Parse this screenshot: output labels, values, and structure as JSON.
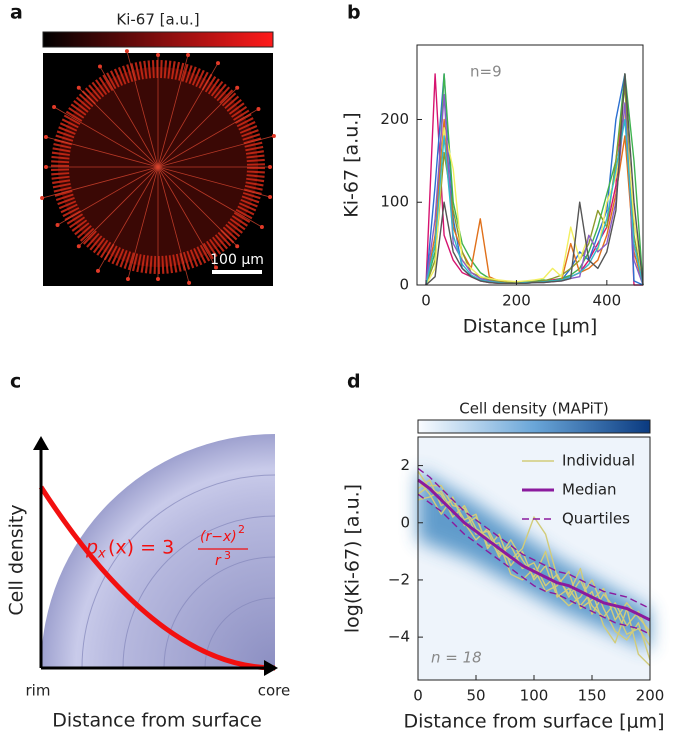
{
  "panel_labels": [
    "a",
    "b",
    "c",
    "d"
  ],
  "panel_a": {
    "colorbar_label": "Ki-67 [a.u.]",
    "scale_bar": "100 μm"
  },
  "panel_c": {
    "y_label": "Cell density",
    "x_label": "Distance from surface",
    "rim": "rim",
    "core": "core",
    "formula": {
      "lhs": "p",
      "lhs_sub": "x",
      "mid": "(x) = 3",
      "num": "(r−x)",
      "num_sup": "2",
      "den": "r",
      "den_sup": "3"
    }
  },
  "chart_data": [
    {
      "type": "line",
      "x_label": "Distance [μm]",
      "y_label": "Ki-67 [a.u.]",
      "annotation": "n=9",
      "x": [
        0,
        20,
        40,
        60,
        80,
        100,
        120,
        140,
        160,
        180,
        200,
        220,
        240,
        260,
        280,
        300,
        320,
        340,
        360,
        380,
        400,
        420,
        440,
        460,
        480
      ],
      "xlim": [
        -20,
        480
      ],
      "xticks": [
        0,
        200,
        400
      ],
      "ylim": [
        0,
        290
      ],
      "yticks": [
        0,
        100,
        200
      ],
      "series": [
        {
          "color": "#d6136f",
          "values": [
            0,
            255,
            60,
            30,
            15,
            10,
            5,
            3,
            2,
            2,
            3,
            4,
            3,
            5,
            6,
            8,
            10,
            15,
            30,
            50,
            70,
            120,
            255,
            0,
            0
          ]
        },
        {
          "color": "#2b6fd1",
          "values": [
            0,
            120,
            255,
            80,
            20,
            10,
            6,
            4,
            3,
            2,
            2,
            2,
            3,
            4,
            5,
            6,
            20,
            40,
            30,
            60,
            90,
            200,
            255,
            5,
            0
          ]
        },
        {
          "color": "#3fb34f",
          "values": [
            0,
            40,
            255,
            100,
            50,
            30,
            15,
            8,
            4,
            3,
            3,
            4,
            5,
            6,
            5,
            8,
            12,
            20,
            40,
            70,
            110,
            150,
            255,
            150,
            0
          ]
        },
        {
          "color": "#e0701a",
          "values": [
            0,
            60,
            200,
            70,
            40,
            20,
            80,
            10,
            5,
            3,
            2,
            3,
            4,
            5,
            4,
            6,
            50,
            15,
            20,
            30,
            60,
            110,
            180,
            40,
            0
          ]
        },
        {
          "color": "#8c9a2a",
          "values": [
            0,
            30,
            160,
            90,
            40,
            15,
            10,
            6,
            4,
            3,
            3,
            3,
            4,
            5,
            8,
            12,
            20,
            30,
            50,
            90,
            70,
            150,
            240,
            60,
            0
          ]
        },
        {
          "color": "#f2ef60",
          "values": [
            0,
            20,
            190,
            140,
            30,
            20,
            10,
            8,
            6,
            5,
            4,
            5,
            6,
            8,
            20,
            10,
            70,
            30,
            60,
            40,
            100,
            130,
            210,
            80,
            0
          ]
        },
        {
          "color": "#8a5cc7",
          "values": [
            0,
            80,
            230,
            50,
            30,
            15,
            8,
            5,
            3,
            2,
            2,
            2,
            3,
            3,
            4,
            5,
            8,
            10,
            60,
            40,
            50,
            100,
            220,
            30,
            0
          ]
        },
        {
          "color": "#33b7c9",
          "values": [
            0,
            50,
            180,
            60,
            25,
            12,
            6,
            4,
            3,
            2,
            2,
            3,
            3,
            4,
            5,
            6,
            10,
            15,
            25,
            45,
            80,
            140,
            200,
            50,
            0
          ]
        },
        {
          "color": "#555555",
          "values": [
            0,
            10,
            100,
            40,
            20,
            10,
            5,
            3,
            2,
            2,
            2,
            2,
            3,
            3,
            4,
            5,
            8,
            100,
            30,
            20,
            40,
            90,
            255,
            100,
            0
          ]
        }
      ]
    },
    {
      "type": "line",
      "x_label": "Distance from surface [μm]",
      "y_label": "log(Ki-67) [a.u.]",
      "annotation": "n = 18",
      "colorbar_label": "Cell density (MAPiT)",
      "legend": "upper right",
      "x": [
        0,
        10,
        20,
        30,
        40,
        50,
        60,
        70,
        80,
        90,
        100,
        110,
        120,
        130,
        140,
        150,
        160,
        170,
        180,
        190,
        200
      ],
      "xlim": [
        0,
        200
      ],
      "xticks": [
        0,
        50,
        100,
        150,
        200
      ],
      "ylim": [
        -5.5,
        3.0
      ],
      "yticks": [
        {
          "value": -4,
          "label": "−4"
        },
        {
          "value": -2,
          "label": "−2"
        },
        0,
        2
      ],
      "series": [
        {
          "name": "Individual",
          "color": "#d2cc7a",
          "values": [
            1.8,
            1.2,
            1.0,
            0.2,
            0.6,
            -0.2,
            -0.5,
            -1.1,
            -0.8,
            -1.6,
            -1.4,
            -2.2,
            -1.8,
            -2.6,
            -2.0,
            -2.9,
            -3.3,
            -2.8,
            -3.6,
            -3.1,
            -4.0
          ]
        },
        {
          "color": "#d2cc7a",
          "values": [
            1.2,
            1.5,
            0.6,
            0.8,
            0.1,
            0.3,
            -0.9,
            -0.4,
            -1.5,
            -1.0,
            -2.0,
            -1.5,
            -2.6,
            -2.3,
            -2.9,
            -2.4,
            -3.6,
            -4.2,
            -3.0,
            -4.6,
            -5.0
          ]
        },
        {
          "color": "#d2cc7a",
          "values": [
            0.8,
            0.9,
            1.1,
            0.4,
            0.0,
            -0.6,
            -0.2,
            -1.0,
            -1.3,
            -0.9,
            0.2,
            -0.4,
            -1.9,
            -2.5,
            -1.6,
            -3.2,
            -2.5,
            -3.0,
            -3.9,
            -3.7,
            -4.3
          ]
        },
        {
          "color": "#d2cc7a",
          "values": [
            1.5,
            1.0,
            0.3,
            0.9,
            -0.1,
            0.2,
            -0.8,
            -0.7,
            -1.8,
            -2.0,
            -1.6,
            -2.4,
            -2.2,
            -1.7,
            -3.0,
            -2.7,
            -2.3,
            -3.4,
            -2.8,
            -3.3,
            -3.8
          ]
        },
        {
          "color": "#d2cc7a",
          "values": [
            1.0,
            1.3,
            1.3,
            0.6,
            0.5,
            -0.4,
            -0.3,
            -1.2,
            -0.6,
            -1.3,
            -1.9,
            -1.0,
            -2.5,
            -2.9,
            -2.6,
            -2.0,
            -3.0,
            -3.8,
            -4.1,
            -3.5,
            -4.8
          ]
        },
        {
          "name": "Median",
          "color": "#8b1a9e",
          "width": 3,
          "values": [
            1.5,
            1.2,
            0.8,
            0.4,
            0.0,
            -0.3,
            -0.6,
            -0.9,
            -1.2,
            -1.5,
            -1.7,
            -1.9,
            -2.1,
            -2.2,
            -2.4,
            -2.6,
            -2.8,
            -2.9,
            -3.0,
            -3.2,
            -3.4
          ]
        },
        {
          "name": "Quartiles",
          "color": "#8b1a9e",
          "dash": true,
          "values": [
            1.0,
            0.7,
            0.4,
            0.0,
            -0.4,
            -0.7,
            -1.0,
            -1.3,
            -1.6,
            -1.9,
            -2.2,
            -2.4,
            -2.5,
            -2.7,
            -2.9,
            -3.1,
            -3.3,
            -3.5,
            -3.6,
            -3.7,
            -3.9
          ]
        },
        {
          "color": "#8b1a9e",
          "dash": true,
          "values": [
            1.9,
            1.6,
            1.2,
            0.8,
            0.4,
            0.1,
            -0.2,
            -0.5,
            -0.8,
            -1.1,
            -1.3,
            -1.5,
            -1.7,
            -1.8,
            -2.0,
            -2.2,
            -2.4,
            -2.5,
            -2.6,
            -2.8,
            -3.0
          ]
        }
      ]
    }
  ]
}
